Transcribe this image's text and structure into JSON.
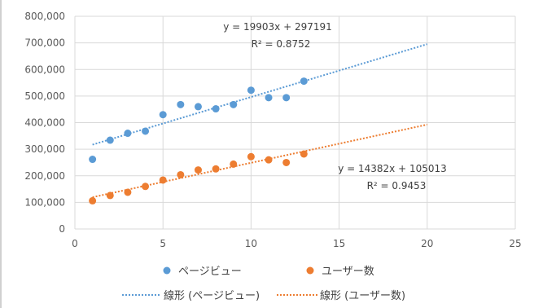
{
  "chart_data": {
    "type": "scatter",
    "xlim": [
      0,
      25
    ],
    "ylim": [
      0,
      800000
    ],
    "x_ticks": [
      "0",
      "5",
      "10",
      "15",
      "20",
      "25"
    ],
    "y_ticks": [
      "0",
      "100,000",
      "200,000",
      "300,000",
      "400,000",
      "500,000",
      "600,000",
      "700,000",
      "800,000"
    ],
    "grid": "vertical and horizontal",
    "legend_position": "bottom",
    "series": [
      {
        "name": "ページビュー",
        "color": "#5B9BD5",
        "points": [
          {
            "x": 1,
            "y": 262000
          },
          {
            "x": 2,
            "y": 334000
          },
          {
            "x": 3,
            "y": 360000
          },
          {
            "x": 4,
            "y": 368000
          },
          {
            "x": 5,
            "y": 430000
          },
          {
            "x": 6,
            "y": 468000
          },
          {
            "x": 7,
            "y": 460000
          },
          {
            "x": 8,
            "y": 452000
          },
          {
            "x": 9,
            "y": 468000
          },
          {
            "x": 10,
            "y": 522000
          },
          {
            "x": 11,
            "y": 494000
          },
          {
            "x": 12,
            "y": 494000
          },
          {
            "x": 13,
            "y": 556000
          }
        ]
      },
      {
        "name": "ユーザー数",
        "color": "#ED7D31",
        "points": [
          {
            "x": 1,
            "y": 106000
          },
          {
            "x": 2,
            "y": 126000
          },
          {
            "x": 3,
            "y": 138000
          },
          {
            "x": 4,
            "y": 160000
          },
          {
            "x": 5,
            "y": 184000
          },
          {
            "x": 6,
            "y": 204000
          },
          {
            "x": 7,
            "y": 222000
          },
          {
            "x": 8,
            "y": 226000
          },
          {
            "x": 9,
            "y": 244000
          },
          {
            "x": 10,
            "y": 272000
          },
          {
            "x": 11,
            "y": 260000
          },
          {
            "x": 12,
            "y": 250000
          },
          {
            "x": 13,
            "y": 282000
          }
        ]
      }
    ],
    "trendlines": [
      {
        "name": "線形 (ページビュー)",
        "color": "#5B9BD5",
        "slope": 19903,
        "intercept": 297191,
        "x_range": [
          1,
          20
        ],
        "equation": "y = 19903x + 297191",
        "r2": "R² = 0.8752"
      },
      {
        "name": "線形 (ユーザー数)",
        "color": "#ED7D31",
        "slope": 14382,
        "intercept": 105013,
        "x_range": [
          1,
          20
        ],
        "equation": "y = 14382x + 105013",
        "r2": "R² = 0.9453"
      }
    ]
  }
}
